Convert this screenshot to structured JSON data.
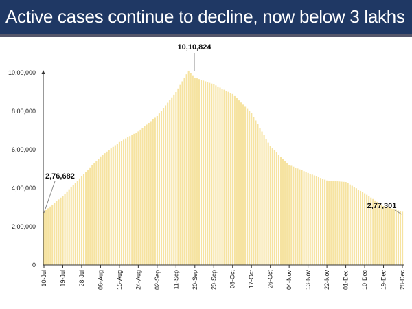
{
  "chart_data": {
    "type": "bar",
    "title": "Active cases continue to decline, now below 3 lakhs",
    "xlabel": "",
    "ylabel": "",
    "ylim": [
      0,
      1000000
    ],
    "grid": false,
    "bar_color": "#f6e3a1",
    "title_bg": "#1f3864",
    "year": 2020,
    "x_tick_labels": [
      "10-Jul",
      "19-Jul",
      "28-Jul",
      "06-Aug",
      "15-Aug",
      "24-Aug",
      "02-Sep",
      "11-Sep",
      "20-Sep",
      "29-Sep",
      "08-Oct",
      "17-Oct",
      "26-Oct",
      "04-Nov",
      "13-Nov",
      "22-Nov",
      "01-Dec",
      "10-Dec",
      "19-Dec",
      "28-Dec"
    ],
    "y_tick_labels": [
      {
        "value": 0,
        "label": "0"
      },
      {
        "value": 200000,
        "label": "2,00,000"
      },
      {
        "value": 400000,
        "label": "4,00,000"
      },
      {
        "value": 600000,
        "label": "6,00,000"
      },
      {
        "value": 800000,
        "label": "8,00,000"
      },
      {
        "value": 1000000,
        "label": "10,00,000"
      }
    ],
    "series": [
      {
        "points": [
          {
            "x": "10-Jul",
            "y": 276682
          },
          {
            "x": "19-Jul",
            "y": 360000
          },
          {
            "x": "28-Jul",
            "y": 462000
          },
          {
            "x": "06-Aug",
            "y": 565000
          },
          {
            "x": "15-Aug",
            "y": 640000
          },
          {
            "x": "24-Aug",
            "y": 695000
          },
          {
            "x": "02-Sep",
            "y": 775000
          },
          {
            "x": "11-Sep",
            "y": 900000
          },
          {
            "x": "17-Sep",
            "y": 1010824
          },
          {
            "x": "20-Sep",
            "y": 975000
          },
          {
            "x": "29-Sep",
            "y": 940000
          },
          {
            "x": "08-Oct",
            "y": 890000
          },
          {
            "x": "17-Oct",
            "y": 790000
          },
          {
            "x": "26-Oct",
            "y": 618000
          },
          {
            "x": "04-Nov",
            "y": 521000
          },
          {
            "x": "13-Nov",
            "y": 479000
          },
          {
            "x": "22-Nov",
            "y": 440000
          },
          {
            "x": "01-Dec",
            "y": 432000
          },
          {
            "x": "10-Dec",
            "y": 373000
          },
          {
            "x": "19-Dec",
            "y": 307000
          },
          {
            "x": "28-Dec",
            "y": 277301
          }
        ]
      }
    ],
    "annotations": [
      {
        "x": "10-Jul",
        "label": "2,76,682"
      },
      {
        "x": "17-Sep",
        "label": "10,10,824"
      },
      {
        "x": "28-Dec",
        "label": "2,77,301"
      }
    ]
  }
}
